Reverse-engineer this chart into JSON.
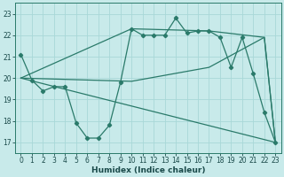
{
  "xlabel": "Humidex (Indice chaleur)",
  "bg_color": "#c8eaea",
  "grid_color": "#a8d8d8",
  "line_color": "#2a7a6a",
  "xlim": [
    -0.5,
    23.5
  ],
  "ylim": [
    16.5,
    23.5
  ],
  "xticks": [
    0,
    1,
    2,
    3,
    4,
    5,
    6,
    7,
    8,
    9,
    10,
    11,
    12,
    13,
    14,
    15,
    16,
    17,
    18,
    19,
    20,
    21,
    22,
    23
  ],
  "yticks": [
    17,
    18,
    19,
    20,
    21,
    22,
    23
  ],
  "main_line": {
    "x": [
      0,
      1,
      2,
      3,
      4,
      5,
      6,
      7,
      8,
      9,
      10,
      11,
      12,
      13,
      14,
      15,
      16,
      17,
      18,
      19,
      20,
      21,
      22,
      23
    ],
    "y": [
      21.1,
      19.9,
      19.4,
      19.6,
      19.6,
      17.9,
      17.2,
      17.2,
      17.8,
      19.8,
      22.3,
      22.0,
      22.0,
      22.0,
      22.8,
      22.1,
      22.2,
      22.2,
      21.9,
      20.5,
      21.9,
      20.2,
      18.4,
      17.0
    ]
  },
  "extra_lines": [
    {
      "x": [
        0,
        10,
        17,
        22,
        23
      ],
      "y": [
        20.0,
        19.85,
        20.5,
        21.9,
        17.0
      ]
    },
    {
      "x": [
        0,
        10,
        17,
        22,
        23
      ],
      "y": [
        20.0,
        22.3,
        22.2,
        21.9,
        17.0
      ]
    },
    {
      "x": [
        0,
        23
      ],
      "y": [
        20.0,
        17.0
      ]
    }
  ]
}
